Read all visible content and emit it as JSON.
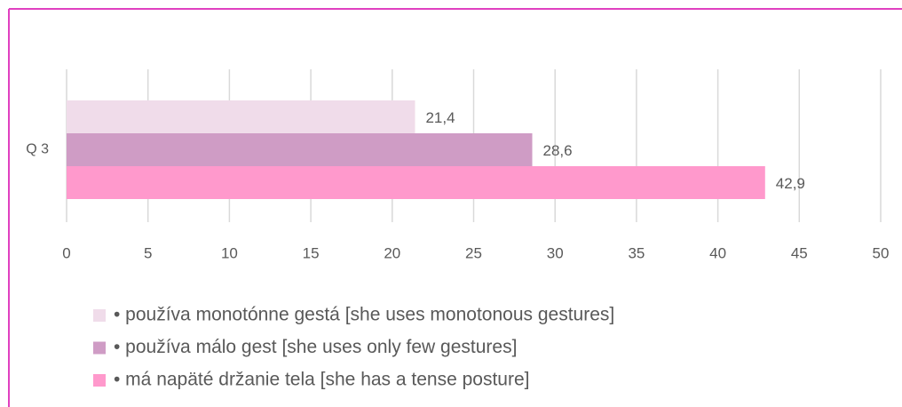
{
  "chart_data": {
    "type": "bar",
    "orientation": "horizontal",
    "categories": [
      "Q 3"
    ],
    "series": [
      {
        "name": "• používa monotónne gestá [she uses monotonous gestures]",
        "color": "#f0dcea",
        "values": [
          21.4
        ],
        "value_labels": [
          "21,4"
        ]
      },
      {
        "name": "• používa málo gest [she uses only few gestures]",
        "color": "#cf9cc5",
        "values": [
          28.6
        ],
        "value_labels": [
          "28,6"
        ]
      },
      {
        "name": "• má napäté držanie tela [she has a tense posture]",
        "color": "#ff99cc",
        "values": [
          42.9
        ],
        "value_labels": [
          "42,9"
        ]
      }
    ],
    "xlim": [
      0,
      50
    ],
    "xticks": [
      0,
      5,
      10,
      15,
      20,
      25,
      30,
      35,
      40,
      45,
      50
    ],
    "grid": true,
    "legend": "bottom"
  }
}
